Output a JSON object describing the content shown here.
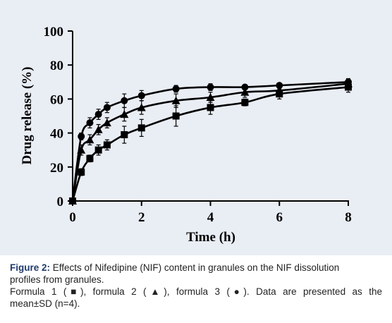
{
  "chart_data": {
    "type": "line",
    "xlabel": "Time (h)",
    "ylabel": "Drug release (%)",
    "xlim": [
      0,
      8
    ],
    "ylim": [
      0,
      100
    ],
    "x_ticks": [
      "0",
      "2",
      "4",
      "6",
      "8"
    ],
    "y_ticks": [
      "0",
      "20",
      "40",
      "60",
      "80",
      "100"
    ],
    "grid": false,
    "legend": "none",
    "series": [
      {
        "marker": "square",
        "x": [
          0,
          0.25,
          0.5,
          0.75,
          1,
          1.5,
          2,
          3,
          4,
          5,
          6,
          8
        ],
        "y": [
          0,
          17,
          25,
          30,
          33,
          39,
          43,
          50,
          55,
          58,
          63,
          67
        ],
        "err": [
          0,
          2,
          2,
          3,
          3,
          5,
          5,
          6,
          4,
          2,
          3,
          3
        ]
      },
      {
        "marker": "triangle",
        "x": [
          0,
          0.25,
          0.5,
          0.75,
          1,
          1.5,
          2,
          3,
          4,
          5,
          6,
          8
        ],
        "y": [
          0,
          30,
          36,
          42,
          46,
          51,
          55,
          59,
          61,
          64,
          65,
          69
        ],
        "err": [
          0,
          3,
          3,
          3,
          3,
          4,
          4,
          4,
          3,
          3,
          2,
          2
        ]
      },
      {
        "marker": "circle",
        "x": [
          0,
          0.25,
          0.5,
          0.75,
          1,
          1.5,
          2,
          3,
          4,
          5,
          6,
          8
        ],
        "y": [
          0,
          38,
          46,
          51,
          55,
          59,
          62,
          66,
          67,
          67,
          68,
          70
        ],
        "err": [
          0,
          2,
          3,
          3,
          3,
          4,
          3,
          2,
          2,
          1,
          1,
          2
        ]
      }
    ]
  },
  "caption": {
    "label": "Figure 2:",
    "line1_rest": " Effects of Nifedipine (NIF) content in granules on the NIF dissolution",
    "line2": "profiles from granules.",
    "line3": "Formula 1 (■), formula 2 (▲), formula 3 (●). Data are presented as the",
    "line4": "mean±SD (n=4)."
  },
  "colors": {
    "panel_background": "#e9edf4",
    "series": "#000000",
    "caption_label": "#1f3a6b"
  }
}
